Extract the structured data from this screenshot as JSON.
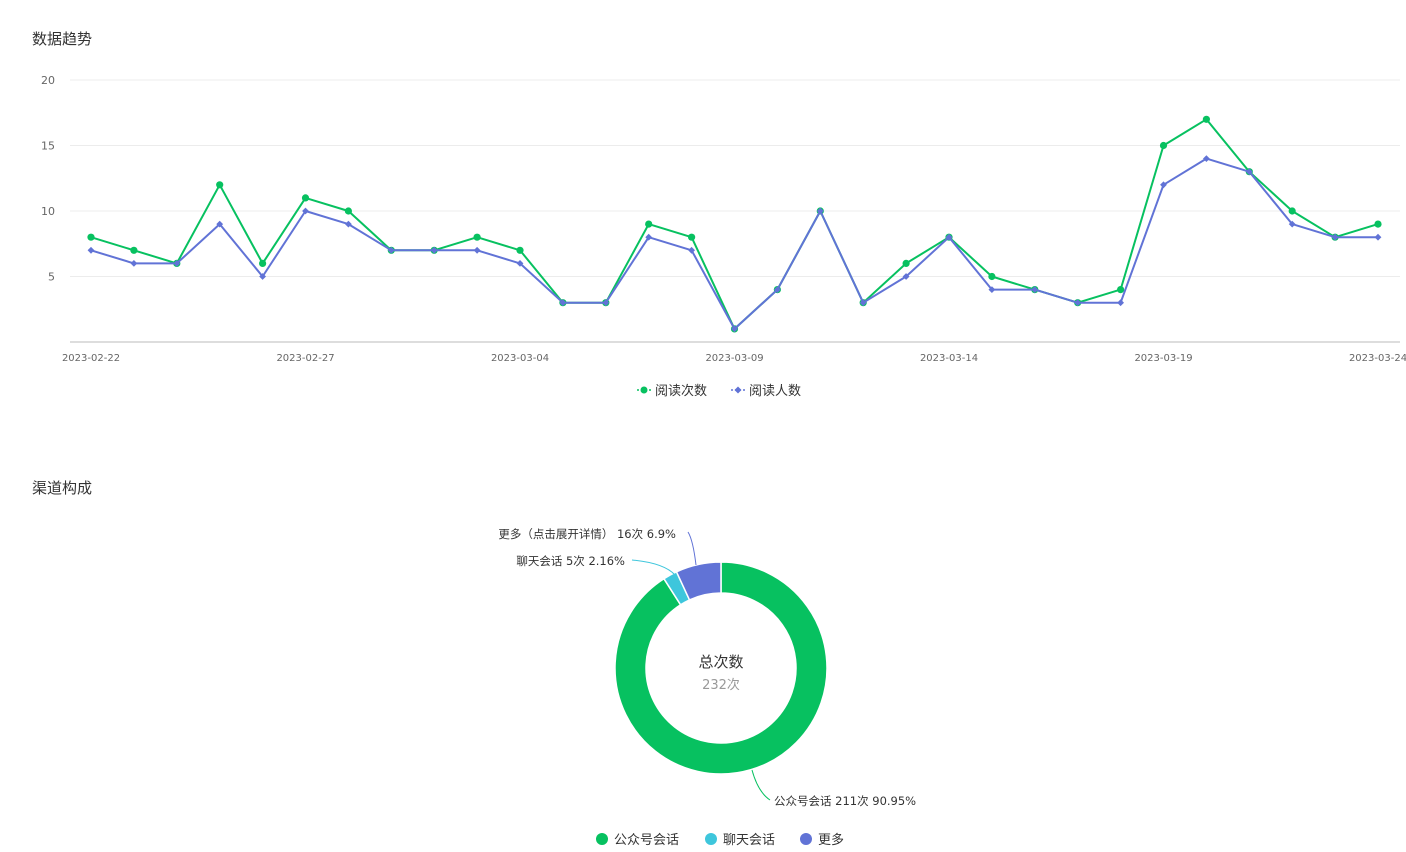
{
  "sections": {
    "trend_title": "数据趋势",
    "channel_title": "渠道构成"
  },
  "chart_data": [
    {
      "type": "line",
      "title": "数据趋势",
      "x": [
        "2023-02-22",
        "2023-02-23",
        "2023-02-24",
        "2023-02-25",
        "2023-02-26",
        "2023-02-27",
        "2023-02-28",
        "2023-03-01",
        "2023-03-02",
        "2023-03-03",
        "2023-03-04",
        "2023-03-05",
        "2023-03-06",
        "2023-03-07",
        "2023-03-08",
        "2023-03-09",
        "2023-03-10",
        "2023-03-11",
        "2023-03-12",
        "2023-03-13",
        "2023-03-14",
        "2023-03-15",
        "2023-03-16",
        "2023-03-17",
        "2023-03-18",
        "2023-03-19",
        "2023-03-20",
        "2023-03-21",
        "2023-03-22",
        "2023-03-23",
        "2023-03-24"
      ],
      "xticks": [
        "2023-02-22",
        "2023-02-27",
        "2023-03-04",
        "2023-03-09",
        "2023-03-14",
        "2023-03-19",
        "2023-03-24"
      ],
      "ylim": [
        0,
        20
      ],
      "yticks": [
        5,
        10,
        15,
        20
      ],
      "grid": true,
      "legend_position": "bottom-center",
      "series": [
        {
          "name": "阅读次数",
          "color": "#07c160",
          "marker": "circle",
          "values": [
            8,
            7,
            6,
            12,
            6,
            11,
            10,
            7,
            7,
            8,
            7,
            3,
            3,
            9,
            8,
            1,
            4,
            10,
            3,
            6,
            8,
            5,
            4,
            3,
            4,
            15,
            17,
            13,
            10,
            8,
            9
          ]
        },
        {
          "name": "阅读人数",
          "color": "#6173d6",
          "marker": "diamond",
          "values": [
            7,
            6,
            6,
            9,
            5,
            10,
            9,
            7,
            7,
            7,
            6,
            3,
            3,
            8,
            7,
            1,
            4,
            10,
            3,
            5,
            8,
            4,
            4,
            3,
            3,
            12,
            14,
            13,
            9,
            8,
            8
          ]
        }
      ]
    },
    {
      "type": "pie",
      "title": "渠道构成",
      "donut": true,
      "center_label": "总次数",
      "center_value": "232次",
      "legend_position": "bottom-center",
      "slices": [
        {
          "name": "公众号会话",
          "legend": "公众号会话",
          "value": 211,
          "label": "公众号会话 211次 90.95%",
          "color": "#07c160"
        },
        {
          "name": "聊天会话",
          "legend": "聊天会话",
          "value": 5,
          "label": "聊天会话 5次 2.16%",
          "color": "#3ec6dc"
        },
        {
          "name": "更多",
          "legend": "更多",
          "value": 16,
          "label": "更多（点击展开详情） 16次 6.9%",
          "color": "#6173d6"
        }
      ]
    }
  ]
}
